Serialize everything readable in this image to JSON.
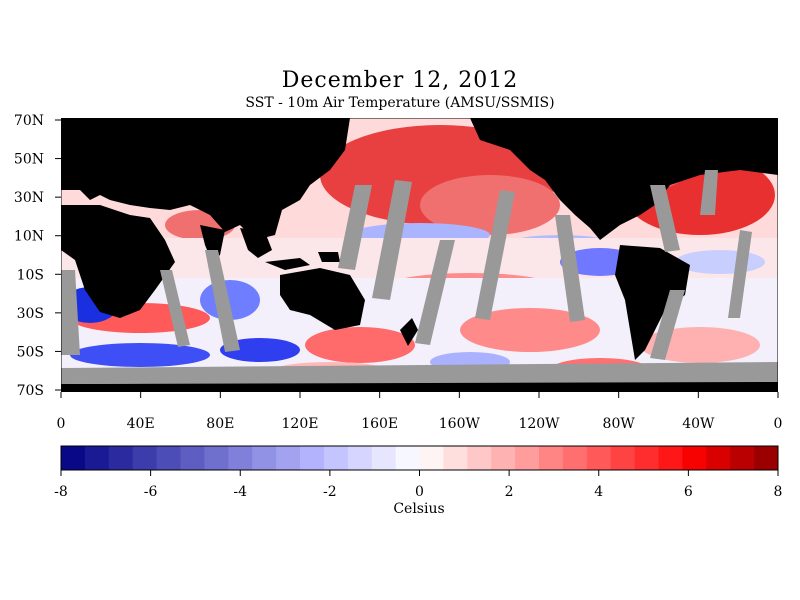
{
  "title": "December 12, 2012",
  "subtitle": "SST - 10m Air Temperature (AMSU/SSMIS)",
  "colors": {
    "land": "#000000",
    "nodata": "#999999",
    "cold": "#0000aa",
    "neutral": "#ffffff",
    "warm": "#aa0000"
  },
  "lat_labels": [
    "70N",
    "50N",
    "30N",
    "10N",
    "10S",
    "30S",
    "50S",
    "70S"
  ],
  "lon_labels": [
    "0",
    "40E",
    "80E",
    "120E",
    "160E",
    "160W",
    "120W",
    "80W",
    "40W",
    "0"
  ],
  "colorbar": {
    "ticks": [
      "-8",
      "-6",
      "-4",
      "-2",
      "0",
      "2",
      "4",
      "6",
      "8"
    ],
    "min": -8,
    "max": 8,
    "steps": 30,
    "unit": "Celsius"
  }
}
